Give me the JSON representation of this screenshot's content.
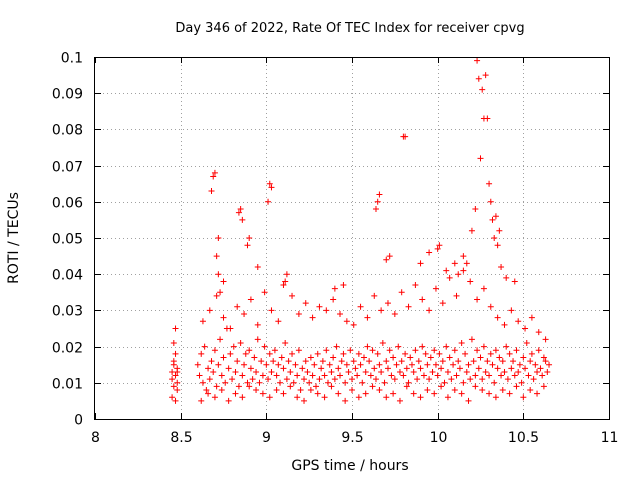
{
  "chart_data": {
    "type": "scatter",
    "title": "Day 346 of 2022, Rate Of TEC Index for receiver cpvg",
    "xlabel": "GPS time / hours",
    "ylabel": "ROTI / TECUs",
    "xlim": [
      8,
      11
    ],
    "ylim": [
      0,
      0.1
    ],
    "x_ticks": [
      8,
      8.5,
      9,
      9.5,
      10,
      10.5,
      11
    ],
    "x_tick_labels": [
      "8",
      "8.5",
      "9",
      "9.5",
      "10",
      "10.5",
      "11"
    ],
    "y_ticks": [
      0,
      0.01,
      0.02,
      0.03,
      0.04,
      0.05,
      0.06,
      0.07,
      0.08,
      0.09,
      0.1
    ],
    "y_tick_labels": [
      "0",
      "0.01",
      "0.02",
      "0.03",
      "0.04",
      "0.05",
      "0.06",
      "0.07",
      "0.08",
      "0.09",
      "0.1"
    ],
    "grid": true,
    "marker": "plus",
    "colors": {
      "points": "#ff0000",
      "frame": "#000000",
      "grid": "#a0a0a0"
    },
    "series": [
      {
        "x": [
          8.45,
          8.45,
          8.46,
          8.46,
          8.47,
          8.47,
          8.48,
          8.48,
          8.46,
          8.47,
          8.48,
          8.47,
          8.45,
          8.46,
          8.48,
          8.6,
          8.61,
          8.62,
          8.63,
          8.64,
          8.65,
          8.66,
          8.67,
          8.68,
          8.69,
          8.7,
          8.71,
          8.72,
          8.73,
          8.74,
          8.75,
          8.76,
          8.77,
          8.78,
          8.79,
          8.8,
          8.81,
          8.82,
          8.83,
          8.84,
          8.85,
          8.86,
          8.87,
          8.88,
          8.89,
          8.9,
          8.91,
          8.92,
          8.93,
          8.94,
          8.95,
          8.96,
          8.97,
          8.98,
          8.99,
          9.0,
          9.01,
          9.02,
          9.03,
          9.04,
          9.05,
          9.06,
          9.07,
          9.08,
          9.09,
          9.1,
          9.11,
          9.12,
          9.13,
          9.14,
          9.15,
          9.16,
          9.17,
          9.18,
          9.19,
          9.2,
          9.21,
          9.22,
          9.23,
          9.24,
          9.25,
          9.26,
          9.27,
          9.28,
          9.29,
          9.3,
          9.31,
          9.32,
          9.33,
          9.34,
          9.35,
          9.36,
          9.37,
          9.38,
          9.39,
          9.4,
          9.41,
          9.42,
          9.43,
          9.44,
          9.45,
          9.46,
          9.47,
          9.48,
          9.49,
          9.5,
          9.51,
          9.52,
          9.53,
          9.54,
          9.55,
          9.56,
          9.57,
          9.58,
          9.59,
          9.6,
          9.61,
          9.62,
          9.63,
          9.64,
          9.65,
          9.66,
          9.67,
          9.68,
          9.69,
          9.7,
          9.71,
          9.72,
          9.73,
          9.74,
          9.75,
          9.76,
          9.77,
          9.78,
          9.79,
          9.8,
          9.81,
          9.82,
          9.83,
          9.84,
          9.85,
          9.86,
          9.87,
          9.88,
          9.89,
          9.9,
          9.91,
          9.92,
          9.93,
          9.94,
          9.95,
          9.96,
          9.97,
          9.98,
          9.99,
          10.0,
          10.01,
          10.02,
          10.03,
          10.04,
          10.05,
          10.06,
          10.07,
          10.08,
          10.09,
          10.1,
          10.11,
          10.12,
          10.13,
          10.14,
          10.15,
          10.16,
          10.17,
          10.18,
          10.19,
          10.2,
          10.21,
          10.22,
          10.23,
          10.24,
          10.25,
          10.26,
          10.27,
          10.28,
          10.29,
          10.3,
          10.31,
          10.32,
          10.33,
          10.34,
          10.35,
          10.36,
          10.37,
          10.38,
          10.39,
          10.4,
          10.41,
          10.42,
          10.43,
          10.44,
          10.45,
          10.46,
          10.47,
          10.48,
          10.49,
          10.5,
          10.51,
          10.52,
          10.53,
          10.54,
          10.55,
          10.56,
          10.57,
          10.58,
          10.59,
          10.6,
          10.61,
          10.62,
          10.63,
          10.64,
          10.65,
          8.62,
          8.66,
          8.7,
          8.74,
          8.78,
          8.82,
          8.86,
          8.9,
          8.94,
          8.98,
          9.02,
          9.06,
          9.1,
          9.14,
          9.18,
          9.22,
          9.26,
          9.3,
          9.34,
          9.38,
          9.42,
          9.46,
          9.5,
          9.54,
          9.58,
          9.62,
          9.66,
          9.7,
          9.74,
          9.78,
          9.82,
          9.86,
          9.9,
          9.94,
          9.98,
          10.02,
          10.06,
          10.1,
          10.14,
          10.18,
          10.22,
          10.26,
          10.3,
          10.34,
          10.38,
          10.42,
          10.46,
          10.5,
          10.54,
          10.58,
          10.62,
          8.63,
          8.67,
          8.71,
          8.75,
          8.79,
          8.83,
          8.87,
          8.91,
          8.95,
          8.99,
          9.03,
          9.07,
          9.11,
          9.15,
          9.19,
          9.23,
          9.27,
          9.31,
          9.35,
          9.39,
          9.43,
          9.47,
          9.51,
          9.55,
          9.59,
          9.63,
          9.67,
          9.71,
          9.75,
          9.79,
          9.83,
          9.87,
          9.91,
          9.95,
          9.99,
          10.03,
          10.07,
          10.11,
          10.15,
          10.19,
          10.23,
          10.27,
          10.31,
          10.35,
          10.39,
          10.43,
          10.47,
          10.51,
          10.55,
          10.59,
          10.63,
          8.68,
          8.69,
          8.7,
          8.71,
          8.72,
          8.84,
          8.85,
          8.86,
          8.89,
          8.9,
          9.01,
          9.02,
          9.03,
          9.64,
          9.65,
          9.66,
          9.8,
          9.81,
          10.0,
          10.01,
          10.15,
          10.17,
          10.2,
          10.22,
          10.23,
          10.24,
          10.25,
          10.26,
          10.27,
          10.28,
          10.29,
          10.3,
          10.31,
          10.32,
          10.33,
          10.34,
          10.35,
          10.36,
          10.37,
          8.72,
          8.73,
          8.75,
          8.95,
          9.1,
          9.12,
          9.4,
          9.45,
          9.7,
          9.72,
          9.9,
          9.95,
          10.05,
          10.1,
          10.12,
          10.4,
          10.45
        ],
        "y": [
          0.013,
          0.011,
          0.009,
          0.015,
          0.012,
          0.018,
          0.014,
          0.01,
          0.021,
          0.025,
          0.008,
          0.005,
          0.006,
          0.016,
          0.013,
          0.015,
          0.012,
          0.018,
          0.01,
          0.02,
          0.008,
          0.014,
          0.011,
          0.016,
          0.013,
          0.019,
          0.009,
          0.015,
          0.022,
          0.012,
          0.017,
          0.01,
          0.025,
          0.014,
          0.018,
          0.011,
          0.02,
          0.013,
          0.016,
          0.009,
          0.021,
          0.012,
          0.015,
          0.018,
          0.01,
          0.019,
          0.014,
          0.011,
          0.017,
          0.013,
          0.022,
          0.01,
          0.016,
          0.012,
          0.02,
          0.015,
          0.011,
          0.018,
          0.013,
          0.016,
          0.019,
          0.012,
          0.015,
          0.01,
          0.017,
          0.014,
          0.021,
          0.011,
          0.016,
          0.013,
          0.018,
          0.01,
          0.015,
          0.012,
          0.019,
          0.008,
          0.014,
          0.011,
          0.016,
          0.013,
          0.01,
          0.017,
          0.012,
          0.015,
          0.009,
          0.018,
          0.011,
          0.014,
          0.016,
          0.012,
          0.019,
          0.01,
          0.015,
          0.013,
          0.017,
          0.011,
          0.02,
          0.014,
          0.012,
          0.016,
          0.018,
          0.01,
          0.015,
          0.013,
          0.019,
          0.011,
          0.016,
          0.014,
          0.012,
          0.018,
          0.015,
          0.01,
          0.017,
          0.013,
          0.02,
          0.016,
          0.012,
          0.019,
          0.014,
          0.011,
          0.018,
          0.015,
          0.013,
          0.021,
          0.01,
          0.016,
          0.014,
          0.019,
          0.012,
          0.017,
          0.011,
          0.015,
          0.02,
          0.013,
          0.016,
          0.012,
          0.018,
          0.014,
          0.01,
          0.017,
          0.015,
          0.013,
          0.019,
          0.011,
          0.016,
          0.014,
          0.02,
          0.012,
          0.018,
          0.015,
          0.011,
          0.017,
          0.013,
          0.019,
          0.015,
          0.012,
          0.018,
          0.014,
          0.016,
          0.01,
          0.02,
          0.013,
          0.017,
          0.011,
          0.015,
          0.019,
          0.012,
          0.016,
          0.014,
          0.021,
          0.01,
          0.018,
          0.013,
          0.015,
          0.011,
          0.022,
          0.016,
          0.012,
          0.019,
          0.014,
          0.017,
          0.011,
          0.02,
          0.013,
          0.016,
          0.012,
          0.018,
          0.015,
          0.01,
          0.019,
          0.014,
          0.017,
          0.012,
          0.016,
          0.013,
          0.02,
          0.011,
          0.018,
          0.014,
          0.016,
          0.012,
          0.019,
          0.013,
          0.015,
          0.01,
          0.017,
          0.014,
          0.021,
          0.012,
          0.016,
          0.018,
          0.011,
          0.015,
          0.013,
          0.019,
          0.014,
          0.012,
          0.017,
          0.016,
          0.013,
          0.015,
          0.005,
          0.007,
          0.006,
          0.008,
          0.005,
          0.007,
          0.006,
          0.009,
          0.008,
          0.007,
          0.006,
          0.008,
          0.007,
          0.009,
          0.006,
          0.005,
          0.008,
          0.007,
          0.006,
          0.009,
          0.007,
          0.005,
          0.008,
          0.006,
          0.007,
          0.009,
          0.008,
          0.006,
          0.007,
          0.005,
          0.009,
          0.007,
          0.006,
          0.008,
          0.007,
          0.009,
          0.006,
          0.008,
          0.007,
          0.005,
          0.009,
          0.008,
          0.007,
          0.006,
          0.008,
          0.007,
          0.009,
          0.006,
          0.008,
          0.007,
          0.009,
          0.027,
          0.03,
          0.034,
          0.028,
          0.025,
          0.031,
          0.029,
          0.033,
          0.026,
          0.035,
          0.03,
          0.027,
          0.038,
          0.034,
          0.029,
          0.032,
          0.028,
          0.031,
          0.03,
          0.033,
          0.029,
          0.027,
          0.026,
          0.031,
          0.028,
          0.034,
          0.03,
          0.032,
          0.029,
          0.035,
          0.031,
          0.037,
          0.033,
          0.03,
          0.036,
          0.032,
          0.039,
          0.034,
          0.041,
          0.038,
          0.033,
          0.036,
          0.031,
          0.028,
          0.026,
          0.03,
          0.027,
          0.025,
          0.028,
          0.024,
          0.022,
          0.063,
          0.067,
          0.068,
          0.045,
          0.05,
          0.057,
          0.058,
          0.055,
          0.048,
          0.05,
          0.06,
          0.065,
          0.064,
          0.058,
          0.06,
          0.062,
          0.078,
          0.078,
          0.047,
          0.048,
          0.045,
          0.043,
          0.052,
          0.058,
          0.099,
          0.094,
          0.072,
          0.091,
          0.083,
          0.095,
          0.083,
          0.065,
          0.06,
          0.055,
          0.05,
          0.056,
          0.048,
          0.052,
          0.042,
          0.04,
          0.035,
          0.038,
          0.042,
          0.037,
          0.04,
          0.036,
          0.037,
          0.044,
          0.045,
          0.043,
          0.046,
          0.041,
          0.043,
          0.04,
          0.039,
          0.038
        ]
      }
    ]
  }
}
